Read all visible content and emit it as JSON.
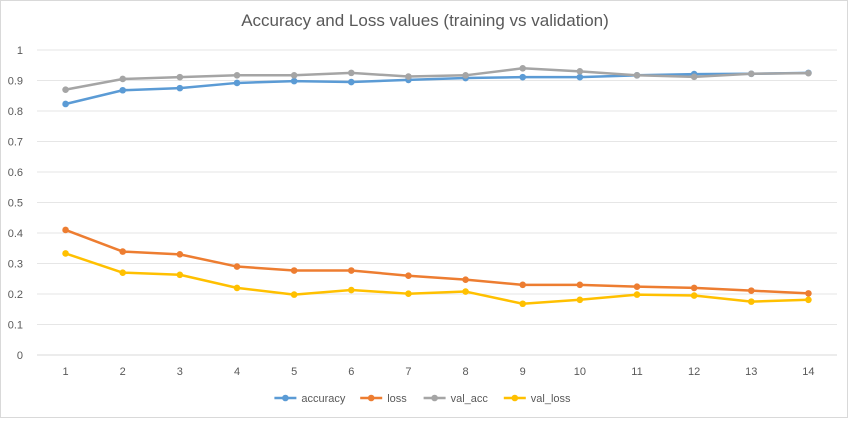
{
  "chart_data": {
    "type": "line",
    "title": "Accuracy and Loss values (training vs validation)",
    "xlabel": "",
    "ylabel": "",
    "x": [
      1,
      2,
      3,
      4,
      5,
      6,
      7,
      8,
      9,
      10,
      11,
      12,
      13,
      14
    ],
    "ylim": [
      0,
      1
    ],
    "yticks": [
      "0",
      "0.1",
      "0.2",
      "0.3",
      "0.4",
      "0.5",
      "0.6",
      "0.7",
      "0.8",
      "0.9",
      "1"
    ],
    "grid": true,
    "legend": "bottom",
    "series": [
      {
        "name": "accuracy",
        "color": "#5b9bd5",
        "values": [
          0.823,
          0.868,
          0.875,
          0.892,
          0.898,
          0.895,
          0.902,
          0.908,
          0.911,
          0.911,
          0.917,
          0.921,
          0.922,
          0.925
        ]
      },
      {
        "name": "loss",
        "color": "#ed7d31",
        "values": [
          0.41,
          0.339,
          0.33,
          0.29,
          0.277,
          0.277,
          0.26,
          0.247,
          0.23,
          0.23,
          0.224,
          0.22,
          0.211,
          0.202
        ]
      },
      {
        "name": "val_acc",
        "color": "#a5a5a5",
        "values": [
          0.87,
          0.905,
          0.911,
          0.917,
          0.917,
          0.925,
          0.913,
          0.917,
          0.94,
          0.93,
          0.917,
          0.912,
          0.922,
          0.924
        ]
      },
      {
        "name": "val_loss",
        "color": "#ffc000",
        "values": [
          0.333,
          0.27,
          0.263,
          0.22,
          0.198,
          0.213,
          0.201,
          0.208,
          0.168,
          0.181,
          0.198,
          0.195,
          0.175,
          0.181
        ]
      }
    ]
  }
}
